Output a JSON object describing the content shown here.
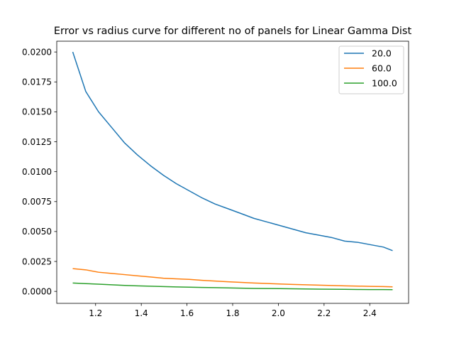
{
  "chart_data": {
    "type": "line",
    "title": "Error vs radius curve for different no of panels for Linear Gamma Dist",
    "xlabel": "",
    "ylabel": "",
    "xlim": [
      1.03,
      2.57
    ],
    "ylim": [
      -0.001,
      0.0209
    ],
    "xticks": [
      "1.2",
      "1.4",
      "1.6",
      "1.8",
      "2.0",
      "2.2",
      "2.4"
    ],
    "yticks": [
      "0.0000",
      "0.0025",
      "0.0050",
      "0.0075",
      "0.0100",
      "0.0125",
      "0.0150",
      "0.0175",
      "0.0200"
    ],
    "grid": false,
    "legend": "top-right",
    "x": [
      1.1,
      1.157,
      1.213,
      1.27,
      1.327,
      1.383,
      1.44,
      1.497,
      1.553,
      1.61,
      1.667,
      1.723,
      1.78,
      1.837,
      1.893,
      1.95,
      2.007,
      2.063,
      2.12,
      2.177,
      2.233,
      2.29,
      2.347,
      2.403,
      2.46,
      2.5
    ],
    "series": [
      {
        "name": "20.0",
        "color": "#1f77b4",
        "values": [
          0.02,
          0.0167,
          0.015,
          0.0137,
          0.0124,
          0.0114,
          0.0105,
          0.0097,
          0.009,
          0.0084,
          0.0078,
          0.0073,
          0.0069,
          0.0065,
          0.0061,
          0.0058,
          0.0055,
          0.0052,
          0.0049,
          0.0047,
          0.0045,
          0.0042,
          0.0041,
          0.0039,
          0.0037,
          0.0034
        ]
      },
      {
        "name": "60.0",
        "color": "#ff7f0e",
        "values": [
          0.0019,
          0.0018,
          0.0016,
          0.0015,
          0.0014,
          0.0013,
          0.0012,
          0.0011,
          0.00105,
          0.001,
          0.00092,
          0.00086,
          0.0008,
          0.00075,
          0.0007,
          0.00066,
          0.00062,
          0.00058,
          0.00055,
          0.00052,
          0.00049,
          0.00046,
          0.00044,
          0.00042,
          0.0004,
          0.00038
        ]
      },
      {
        "name": "100.0",
        "color": "#2ca02c",
        "values": [
          0.0007,
          0.00065,
          0.0006,
          0.00055,
          0.0005,
          0.00046,
          0.00043,
          0.0004,
          0.00037,
          0.00035,
          0.00033,
          0.00031,
          0.00029,
          0.00027,
          0.00025,
          0.00024,
          0.00023,
          0.00022,
          0.0002,
          0.00019,
          0.00018,
          0.00017,
          0.00016,
          0.00015,
          0.00015,
          0.00014
        ]
      }
    ]
  }
}
